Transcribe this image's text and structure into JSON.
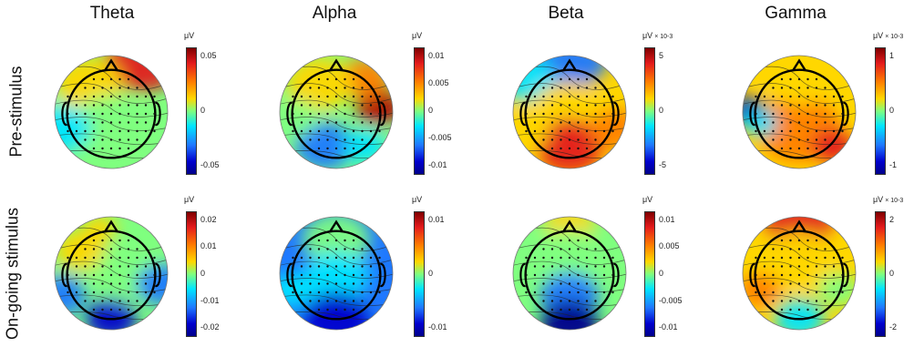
{
  "columns": [
    "Theta",
    "Alpha",
    "Beta",
    "Gamma"
  ],
  "rows": [
    "Pre-stimulus",
    "On-going stimulus"
  ],
  "panels": [
    {
      "id": "pre-theta",
      "unit": "μV",
      "exp": "",
      "ticks": [
        "0.05",
        "0",
        "-0.05"
      ]
    },
    {
      "id": "pre-alpha",
      "unit": "μV",
      "exp": "",
      "ticks": [
        "0.01",
        "0.005",
        "0",
        "-0.005",
        "-0.01"
      ]
    },
    {
      "id": "pre-beta",
      "unit": "μV",
      "exp": "× 10-3",
      "ticks": [
        "5",
        "0",
        "-5"
      ]
    },
    {
      "id": "pre-gamma",
      "unit": "μV",
      "exp": "× 10-3",
      "ticks": [
        "1",
        "0",
        "-1"
      ]
    },
    {
      "id": "on-theta",
      "unit": "μV",
      "exp": "",
      "ticks": [
        "0.02",
        "0.01",
        "0",
        "-0.01",
        "-0.02"
      ]
    },
    {
      "id": "on-alpha",
      "unit": "μV",
      "exp": "",
      "ticks": [
        "0.01",
        "0",
        "-0.01"
      ]
    },
    {
      "id": "on-beta",
      "unit": "μV",
      "exp": "",
      "ticks": [
        "0.01",
        "0.005",
        "0",
        "-0.005",
        "-0.01"
      ]
    },
    {
      "id": "on-gamma",
      "unit": "μV",
      "exp": "× 10-3",
      "ticks": [
        "2",
        "0",
        "-2"
      ]
    }
  ],
  "colormap": [
    "#00008b",
    "#0000cd",
    "#1f78ff",
    "#00e5ff",
    "#7fff7f",
    "#ffd700",
    "#ff7f00",
    "#e31a1c",
    "#7f0000"
  ]
}
